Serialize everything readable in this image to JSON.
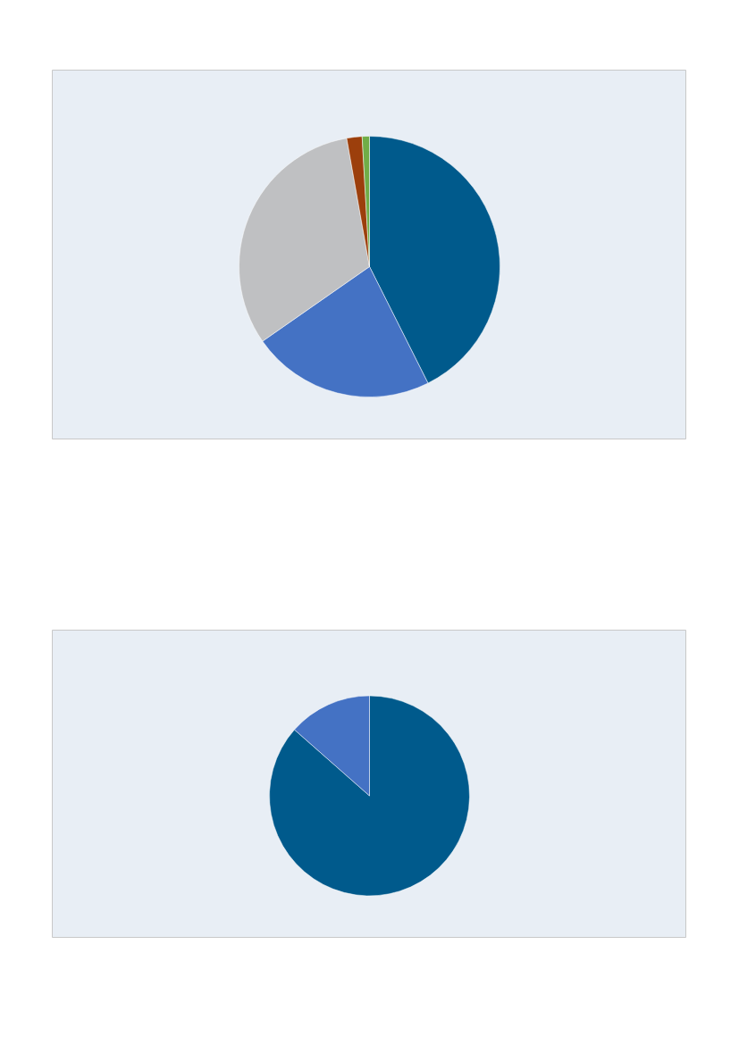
{
  "chart_data": [
    {
      "type": "pie",
      "categories": [
        null,
        null,
        null,
        null,
        null
      ],
      "values": [
        42.6,
        22.7,
        31.9,
        1.9,
        0.9
      ],
      "colors": [
        "#005a8c",
        "#4472c4",
        "#bfc0c2",
        "#9c3f0c",
        "#70ad47"
      ]
    },
    {
      "type": "pie",
      "categories": [
        null,
        null
      ],
      "values": [
        86.5,
        13.5
      ],
      "colors": [
        "#005a8c",
        "#4472c4"
      ]
    }
  ]
}
